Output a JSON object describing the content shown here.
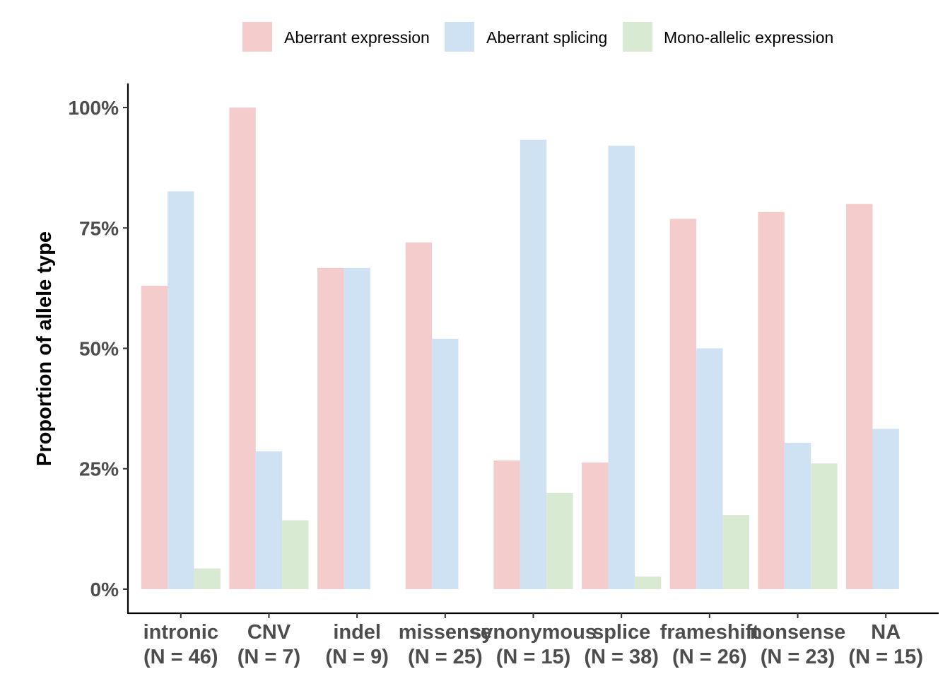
{
  "chart_data": {
    "type": "bar",
    "ylabel": "Proportion of allele type",
    "xlabel": "",
    "title": "",
    "ylim": [
      -0.05,
      1.05
    ],
    "yticks": [
      0,
      0.25,
      0.5,
      0.75,
      1.0
    ],
    "ytick_labels": [
      "0%",
      "25%",
      "50%",
      "75%",
      "100%"
    ],
    "categories": [
      "intronic",
      "CNV",
      "indel",
      "missense",
      "synonymous",
      "splice",
      "frameshift",
      "nonsense",
      "NA"
    ],
    "category_counts": [
      "(N = 46)",
      "(N = 7)",
      "(N = 9)",
      "(N = 25)",
      "(N = 15)",
      "(N = 38)",
      "(N = 26)",
      "(N = 23)",
      "(N = 15)"
    ],
    "legend_position": "top",
    "grid": false,
    "series": [
      {
        "name": "Aberrant expression",
        "color": "#f4cccc",
        "values": [
          0.63,
          1.0,
          0.667,
          0.72,
          0.267,
          0.263,
          0.769,
          0.783,
          0.8
        ]
      },
      {
        "name": "Aberrant splicing",
        "color": "#cfe2f3",
        "values": [
          0.826,
          0.286,
          0.667,
          0.52,
          0.933,
          0.921,
          0.5,
          0.304,
          0.333
        ]
      },
      {
        "name": "Mono-allelic expression",
        "color": "#d9ead3",
        "values": [
          0.043,
          0.143,
          0.0,
          0.0,
          0.2,
          0.026,
          0.154,
          0.261,
          0.0
        ]
      }
    ]
  }
}
